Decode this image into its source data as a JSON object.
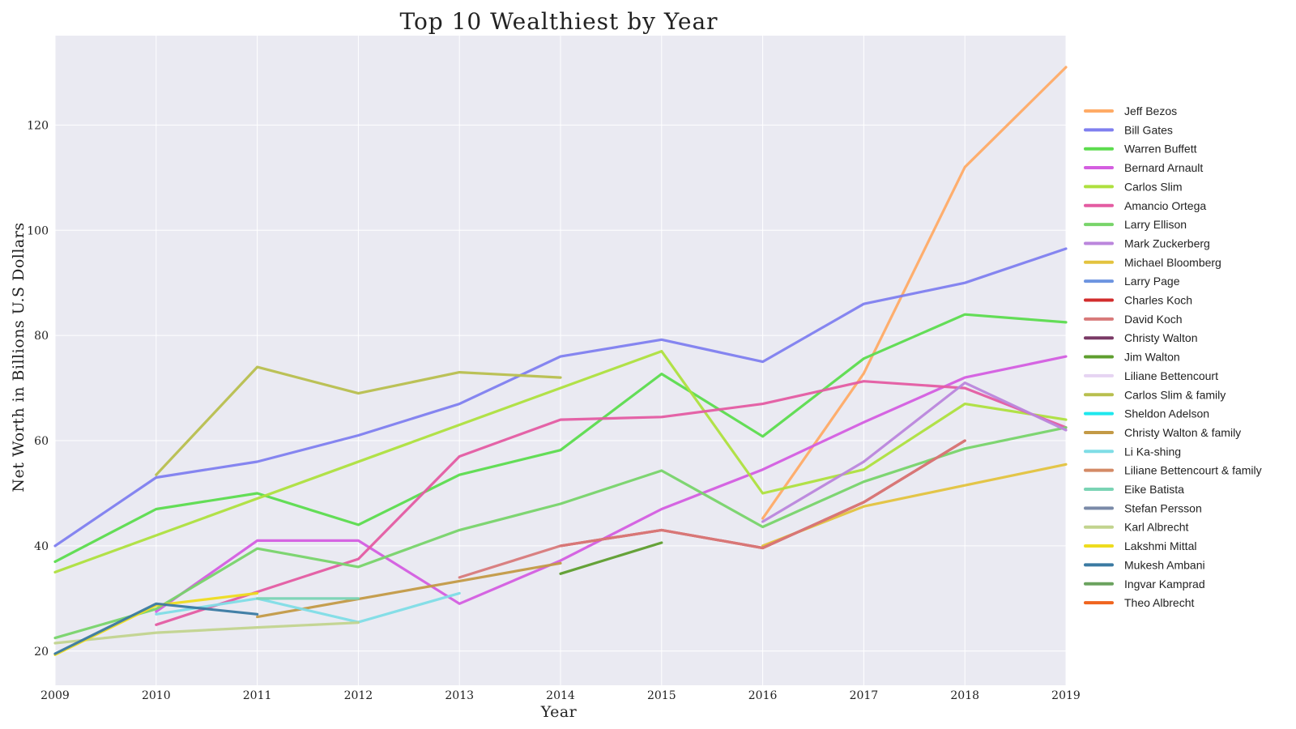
{
  "chart_data": {
    "type": "line",
    "title": "Top 10 Wealthiest by Year",
    "xlabel": "Year",
    "ylabel": "Net Worth in Billions U.S Dollars",
    "xlim": [
      2009,
      2019
    ],
    "ylim": [
      13.5,
      137
    ],
    "xticks": [
      2009,
      2010,
      2011,
      2012,
      2013,
      2014,
      2015,
      2016,
      2017,
      2018,
      2019
    ],
    "yticks": [
      20,
      40,
      60,
      80,
      100,
      120
    ],
    "grid": true,
    "legend": "right",
    "series": [
      {
        "name": "Jeff Bezos",
        "color": "#ffab66",
        "x": [
          2016,
          2017,
          2018,
          2019
        ],
        "values": [
          45.2,
          72.8,
          112,
          131
        ]
      },
      {
        "name": "Bill Gates",
        "color": "#7f7fef",
        "x": [
          2009,
          2010,
          2011,
          2012,
          2013,
          2014,
          2015,
          2016,
          2017,
          2018,
          2019
        ],
        "values": [
          40,
          53,
          56,
          61,
          67,
          76,
          79.2,
          75,
          86,
          90,
          96.5
        ]
      },
      {
        "name": "Warren Buffett",
        "color": "#5cdc4e",
        "x": [
          2009,
          2010,
          2011,
          2012,
          2013,
          2014,
          2015,
          2016,
          2017,
          2018,
          2019
        ],
        "values": [
          37,
          47,
          50,
          44,
          53.5,
          58.2,
          72.7,
          60.8,
          75.6,
          84,
          82.5
        ]
      },
      {
        "name": "Bernard Arnault",
        "color": "#d45ee0",
        "x": [
          2010,
          2011,
          2012,
          2013,
          2014,
          2015,
          2016,
          2017,
          2018,
          2019
        ],
        "values": [
          27.5,
          41,
          41,
          29,
          37.2,
          47,
          54.5,
          63.5,
          72,
          76
        ]
      },
      {
        "name": "Carlos Slim",
        "color": "#aee03e",
        "x": [
          2009,
          2015,
          2016,
          2017,
          2018,
          2019
        ],
        "values": [
          35,
          77,
          50,
          54.5,
          67,
          64
        ]
      },
      {
        "name": "Amancio Ortega",
        "color": "#e45ca2",
        "x": [
          2010,
          2012,
          2013,
          2014,
          2015,
          2016,
          2017,
          2018,
          2019
        ],
        "values": [
          25,
          37.5,
          57,
          64,
          64.5,
          67,
          71.3,
          70,
          62.5
        ]
      },
      {
        "name": "Larry Ellison",
        "color": "#78d46a",
        "x": [
          2009,
          2010,
          2011,
          2012,
          2013,
          2014,
          2015,
          2016,
          2017,
          2018,
          2019
        ],
        "values": [
          22.5,
          28,
          39.5,
          36,
          43,
          48,
          54.3,
          43.6,
          52.2,
          58.5,
          62.5
        ]
      },
      {
        "name": "Mark Zuckerberg",
        "color": "#bb86dc",
        "x": [
          2016,
          2017,
          2018,
          2019
        ],
        "values": [
          44.6,
          56,
          71,
          62
        ]
      },
      {
        "name": "Michael Bloomberg",
        "color": "#e3c33e",
        "x": [
          2016,
          2017,
          2018,
          2019
        ],
        "values": [
          40,
          47.5,
          51.5,
          55.5
        ]
      },
      {
        "name": "Larry Page",
        "color": "#6d94e0",
        "x": [],
        "values": []
      },
      {
        "name": "Charles Koch",
        "color": "#d22d2d",
        "x": [
          2014,
          2015,
          2016,
          2017,
          2018
        ],
        "values": [
          40,
          43,
          39.6,
          48.3,
          60
        ]
      },
      {
        "name": "David Koch",
        "color": "#d87a7a",
        "x": [
          2013,
          2014,
          2015,
          2016,
          2017,
          2018
        ],
        "values": [
          34,
          40,
          43,
          39.6,
          48.3,
          60
        ]
      },
      {
        "name": "Christy Walton",
        "color": "#7a3a66",
        "x": [],
        "values": []
      },
      {
        "name": "Jim Walton",
        "color": "#5e9e2e",
        "x": [
          2014,
          2015
        ],
        "values": [
          34.7,
          40.6
        ]
      },
      {
        "name": "Liliane Bettencourt",
        "color": "#e6d4f2",
        "x": [],
        "values": []
      },
      {
        "name": "Carlos Slim & family",
        "color": "#b8bf4e",
        "x": [
          2010,
          2011,
          2012,
          2013,
          2014
        ],
        "values": [
          53.5,
          74,
          69,
          73,
          72
        ]
      },
      {
        "name": "Sheldon Adelson",
        "color": "#1ee8ee",
        "x": [],
        "values": []
      },
      {
        "name": "Christy Walton & family",
        "color": "#c39a46",
        "x": [
          2011,
          2014
        ],
        "values": [
          26.5,
          36.7
        ]
      },
      {
        "name": "Li Ka-shing",
        "color": "#7fdde6",
        "x": [
          2010,
          2011,
          2012,
          2013
        ],
        "values": [
          27,
          30,
          25.5,
          31
        ]
      },
      {
        "name": "Liliane Bettencourt & family",
        "color": "#d48a66",
        "x": [],
        "values": []
      },
      {
        "name": "Eike Batista",
        "color": "#7ad4b4",
        "x": [
          2011,
          2012
        ],
        "values": [
          30,
          30
        ]
      },
      {
        "name": "Stefan Persson",
        "color": "#7a8aa8",
        "x": [],
        "values": []
      },
      {
        "name": "Karl Albrecht",
        "color": "#c2d48e",
        "x": [
          2009,
          2010,
          2011,
          2012
        ],
        "values": [
          21.5,
          23.5,
          24.5,
          25.4
        ]
      },
      {
        "name": "Lakshmi Mittal",
        "color": "#eedc1e",
        "x": [
          2009,
          2010,
          2011
        ],
        "values": [
          19.3,
          28.7,
          31
        ]
      },
      {
        "name": "Mukesh Ambani",
        "color": "#3a7aa2",
        "x": [
          2009,
          2010,
          2011
        ],
        "values": [
          19.5,
          29,
          27
        ]
      },
      {
        "name": "Ingvar Kamprad",
        "color": "#6aa25e",
        "x": [],
        "values": []
      },
      {
        "name": "Theo Albrecht",
        "color": "#f0641e",
        "x": [],
        "values": []
      }
    ]
  }
}
